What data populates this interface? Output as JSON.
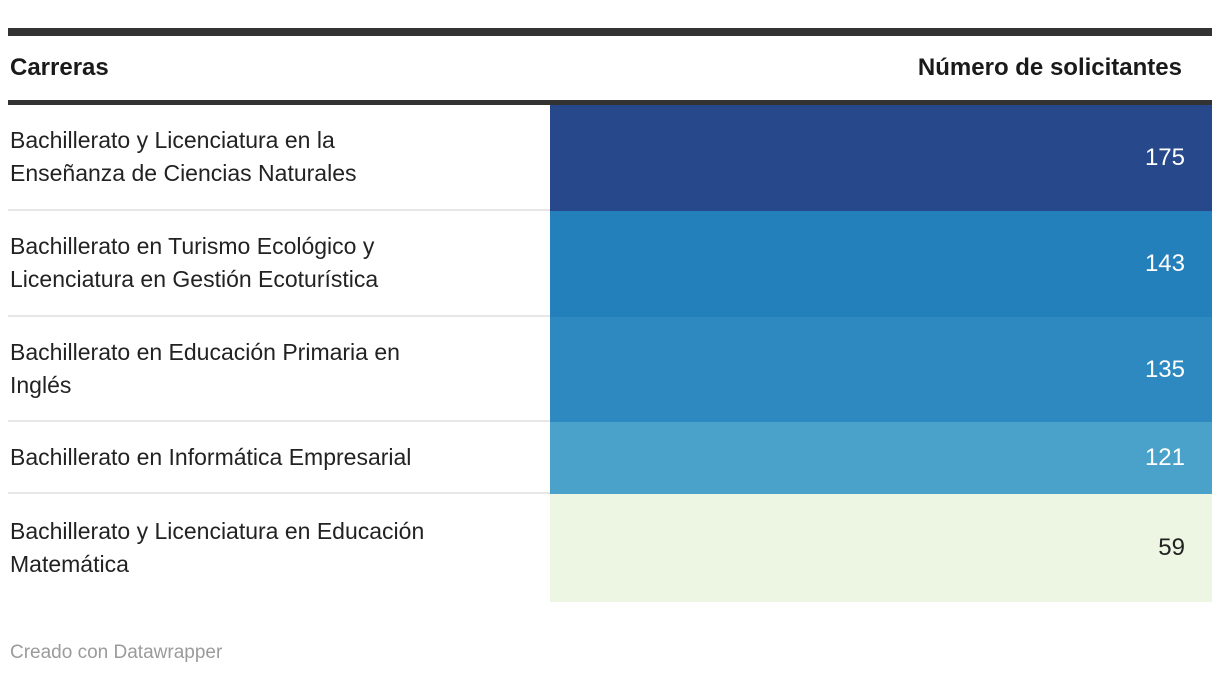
{
  "header": {
    "col1": "Carreras",
    "col2": "Número de solicitantes"
  },
  "chart_data": {
    "type": "table",
    "title": "",
    "columns": [
      "Carreras",
      "Número de solicitantes"
    ],
    "categories": [
      "Bachillerato y Licenciatura en la Enseñanza de Ciencias Naturales",
      "Bachillerato en Turismo Ecológico y Licenciatura en Gestión Ecoturística",
      "Bachillerato en Educación Primaria en Inglés",
      "Bachillerato en Informática Empresarial",
      "Bachillerato y Licenciatura en Educación Matemática"
    ],
    "values": [
      175,
      143,
      135,
      121,
      59
    ],
    "color_scale": "heatmap dark-blue (high) to light-green (low)",
    "legend": "none",
    "rows": [
      {
        "carrera": "Bachillerato y Licenciatura en la Enseñanza de Ciencias Naturales",
        "carrera_lines": [
          "Bachillerato y Licenciatura en la",
          "Enseñanza de Ciencias Naturales"
        ],
        "value": "175",
        "cell_color": "#27498b",
        "value_color": "#ffffff"
      },
      {
        "carrera": "Bachillerato en Turismo Ecológico y Licenciatura en Gestión Ecoturística",
        "carrera_lines": [
          "Bachillerato en Turismo Ecológico y",
          "Licenciatura en Gestión Ecoturística"
        ],
        "value": "143",
        "cell_color": "#2380bb",
        "value_color": "#ffffff"
      },
      {
        "carrera": "Bachillerato en Educación Primaria en Inglés",
        "carrera_lines": [
          "Bachillerato en Educación Primaria en",
          "Inglés"
        ],
        "value": "135",
        "cell_color": "#2e89c0",
        "value_color": "#ffffff"
      },
      {
        "carrera": "Bachillerato en Informática Empresarial",
        "carrera_lines": [
          "Bachillerato en Informática Empresarial"
        ],
        "value": "121",
        "cell_color": "#4aa1ca",
        "value_color": "#ffffff"
      },
      {
        "carrera": "Bachillerato y Licenciatura en Educación Matemática",
        "carrera_lines": [
          "Bachillerato y Licenciatura en Educación",
          "Matemática"
        ],
        "value": "59",
        "cell_color": "#ecf6e3",
        "value_color": "#222222"
      }
    ]
  },
  "colors": {
    "rule": "#333333",
    "header_text": "#1a1a1a",
    "label_text": "#222222",
    "row_separator": "#e7e7e7",
    "footer_text": "#9b9b9b"
  },
  "footer": {
    "credit": "Creado con Datawrapper"
  }
}
